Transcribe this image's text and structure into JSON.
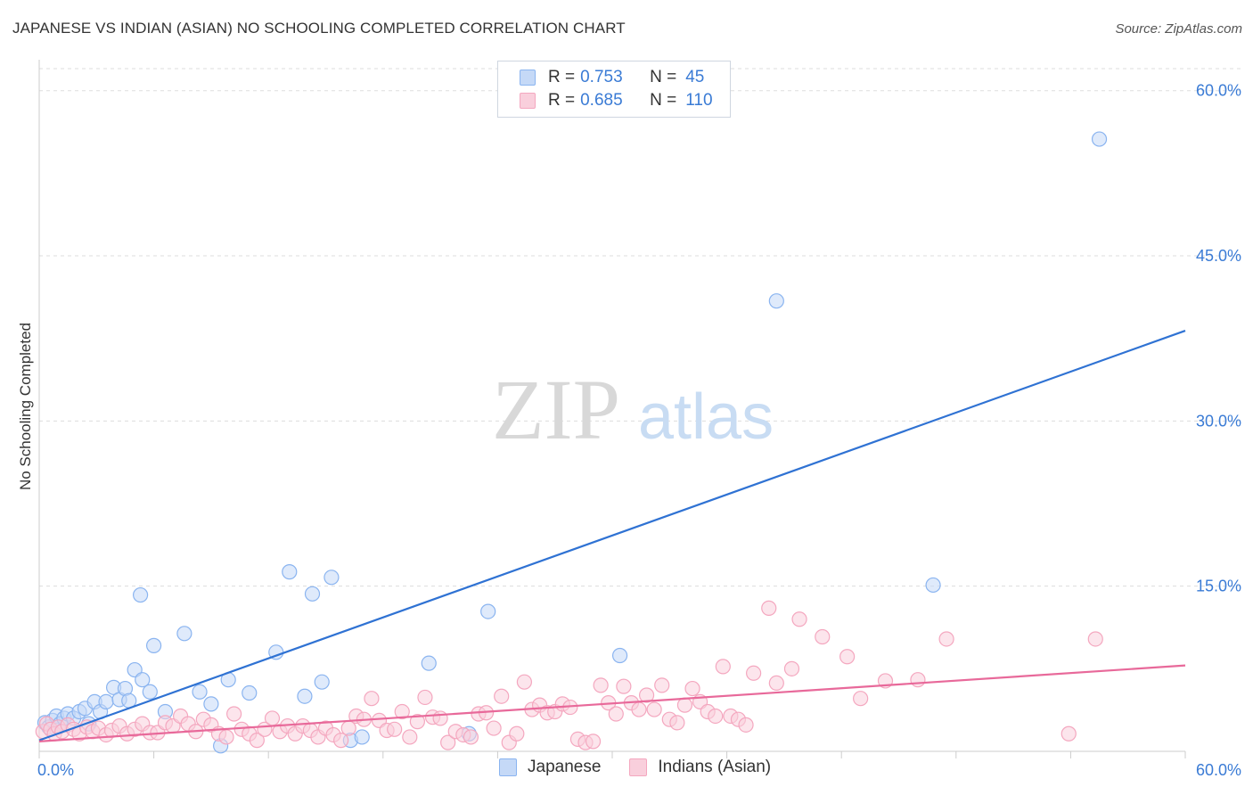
{
  "title": "JAPANESE VS INDIAN (ASIAN) NO SCHOOLING COMPLETED CORRELATION CHART",
  "source": "Source: ZipAtlas.com",
  "watermark": {
    "zip": "ZIP",
    "atlas": "atlas"
  },
  "legend": [
    {
      "r_label": "R =",
      "r_value": "0.753",
      "n_label": "N =",
      "n_value": "45",
      "color": "#8ab4f0",
      "fill": "#c5d9f7"
    },
    {
      "r_label": "R =",
      "r_value": "0.685",
      "n_label": "N =",
      "n_value": "110",
      "color": "#f4a7bf",
      "fill": "#f9cfdc"
    }
  ],
  "bottom_legend": [
    {
      "label": "Japanese",
      "color": "#8ab4f0",
      "fill": "#c5d9f7"
    },
    {
      "label": "Indians (Asian)",
      "color": "#f4a7bf",
      "fill": "#f9cfdc"
    }
  ],
  "chart_data": {
    "type": "scatter",
    "title": "JAPANESE VS INDIAN (ASIAN) NO SCHOOLING COMPLETED CORRELATION CHART",
    "xlabel": "",
    "ylabel": "No Schooling Completed",
    "xlim": [
      0,
      60
    ],
    "ylim": [
      0,
      62
    ],
    "x_tick_labels": [
      {
        "value": 0,
        "label": "0.0%"
      },
      {
        "value": 60,
        "label": "60.0%"
      }
    ],
    "y_tick_labels": [
      {
        "value": 15,
        "label": "15.0%"
      },
      {
        "value": 30,
        "label": "30.0%"
      },
      {
        "value": 45,
        "label": "45.0%"
      },
      {
        "value": 60,
        "label": "60.0%"
      }
    ],
    "grid": true,
    "series": [
      {
        "name": "Japanese",
        "stroke": "#8ab4f0",
        "fill": "#c5d9f7",
        "line_color": "#2f72d3",
        "trend": {
          "x0": 0,
          "y0": 1.0,
          "x1": 60,
          "y1": 38.2
        },
        "points": [
          [
            0.3,
            2.6
          ],
          [
            0.5,
            2.2
          ],
          [
            0.7,
            2.8
          ],
          [
            0.9,
            3.2
          ],
          [
            1.1,
            2.5
          ],
          [
            1.3,
            3.0
          ],
          [
            1.5,
            3.4
          ],
          [
            1.8,
            3.0
          ],
          [
            2.1,
            3.6
          ],
          [
            2.4,
            3.9
          ],
          [
            2.6,
            2.5
          ],
          [
            2.9,
            4.5
          ],
          [
            3.2,
            3.6
          ],
          [
            3.5,
            4.5
          ],
          [
            3.9,
            5.8
          ],
          [
            4.2,
            4.7
          ],
          [
            4.5,
            5.7
          ],
          [
            4.7,
            4.6
          ],
          [
            5.0,
            7.4
          ],
          [
            5.3,
            14.2
          ],
          [
            5.4,
            6.5
          ],
          [
            5.8,
            5.4
          ],
          [
            6.0,
            9.6
          ],
          [
            6.6,
            3.6
          ],
          [
            7.6,
            10.7
          ],
          [
            8.4,
            5.4
          ],
          [
            9.0,
            4.3
          ],
          [
            9.5,
            0.5
          ],
          [
            9.9,
            6.5
          ],
          [
            11.0,
            5.3
          ],
          [
            12.4,
            9.0
          ],
          [
            13.1,
            16.3
          ],
          [
            13.9,
            5.0
          ],
          [
            14.3,
            14.3
          ],
          [
            14.8,
            6.3
          ],
          [
            15.3,
            15.8
          ],
          [
            16.3,
            1.0
          ],
          [
            16.9,
            1.3
          ],
          [
            20.4,
            8.0
          ],
          [
            22.5,
            1.6
          ],
          [
            23.5,
            12.7
          ],
          [
            30.4,
            8.7
          ],
          [
            38.6,
            40.9
          ],
          [
            46.8,
            15.1
          ],
          [
            55.5,
            55.6
          ]
        ]
      },
      {
        "name": "Indians (Asian)",
        "stroke": "#f4a7bf",
        "fill": "#f9cfdc",
        "line_color": "#e8699a",
        "trend": {
          "x0": 0,
          "y0": 0.9,
          "x1": 60,
          "y1": 7.8
        },
        "points": [
          [
            0.2,
            1.8
          ],
          [
            0.4,
            2.5
          ],
          [
            0.6,
            2.0
          ],
          [
            0.8,
            1.6
          ],
          [
            1.0,
            2.2
          ],
          [
            1.2,
            1.8
          ],
          [
            1.5,
            2.4
          ],
          [
            1.8,
            2.0
          ],
          [
            2.1,
            1.6
          ],
          [
            2.5,
            2.2
          ],
          [
            2.8,
            1.8
          ],
          [
            3.1,
            2.1
          ],
          [
            3.5,
            1.5
          ],
          [
            3.8,
            1.9
          ],
          [
            4.2,
            2.3
          ],
          [
            4.6,
            1.6
          ],
          [
            5.0,
            2.0
          ],
          [
            5.4,
            2.5
          ],
          [
            5.8,
            1.7
          ],
          [
            6.2,
            1.7
          ],
          [
            6.6,
            2.6
          ],
          [
            7.0,
            2.3
          ],
          [
            7.4,
            3.2
          ],
          [
            7.8,
            2.5
          ],
          [
            8.2,
            1.8
          ],
          [
            8.6,
            2.9
          ],
          [
            9.0,
            2.4
          ],
          [
            9.4,
            1.6
          ],
          [
            9.8,
            1.3
          ],
          [
            10.2,
            3.4
          ],
          [
            10.6,
            2.0
          ],
          [
            11.0,
            1.6
          ],
          [
            11.4,
            1.0
          ],
          [
            11.8,
            2.0
          ],
          [
            12.2,
            3.0
          ],
          [
            12.6,
            1.8
          ],
          [
            13.0,
            2.3
          ],
          [
            13.4,
            1.6
          ],
          [
            13.8,
            2.3
          ],
          [
            14.2,
            1.9
          ],
          [
            14.6,
            1.3
          ],
          [
            15.0,
            2.1
          ],
          [
            15.4,
            1.5
          ],
          [
            15.8,
            1.0
          ],
          [
            16.2,
            2.1
          ],
          [
            16.6,
            3.2
          ],
          [
            17.0,
            2.9
          ],
          [
            17.4,
            4.8
          ],
          [
            17.8,
            2.8
          ],
          [
            18.2,
            1.9
          ],
          [
            18.6,
            2.0
          ],
          [
            19.0,
            3.6
          ],
          [
            19.4,
            1.3
          ],
          [
            19.8,
            2.7
          ],
          [
            20.2,
            4.9
          ],
          [
            20.6,
            3.1
          ],
          [
            21.0,
            3.0
          ],
          [
            21.4,
            0.8
          ],
          [
            21.8,
            1.8
          ],
          [
            22.2,
            1.5
          ],
          [
            22.6,
            1.3
          ],
          [
            23.0,
            3.4
          ],
          [
            23.4,
            3.5
          ],
          [
            23.8,
            2.1
          ],
          [
            24.2,
            5.0
          ],
          [
            24.6,
            0.8
          ],
          [
            25.0,
            1.6
          ],
          [
            25.4,
            6.3
          ],
          [
            25.8,
            3.8
          ],
          [
            26.2,
            4.2
          ],
          [
            26.6,
            3.5
          ],
          [
            27.0,
            3.6
          ],
          [
            27.4,
            4.3
          ],
          [
            27.8,
            4.0
          ],
          [
            28.2,
            1.1
          ],
          [
            28.6,
            0.8
          ],
          [
            29.0,
            0.9
          ],
          [
            29.4,
            6.0
          ],
          [
            29.8,
            4.4
          ],
          [
            30.2,
            3.4
          ],
          [
            30.6,
            5.9
          ],
          [
            31.0,
            4.4
          ],
          [
            31.4,
            3.8
          ],
          [
            31.8,
            5.1
          ],
          [
            32.2,
            3.8
          ],
          [
            32.6,
            6.0
          ],
          [
            33.0,
            2.9
          ],
          [
            33.4,
            2.6
          ],
          [
            33.8,
            4.2
          ],
          [
            34.2,
            5.7
          ],
          [
            34.6,
            4.5
          ],
          [
            35.0,
            3.6
          ],
          [
            35.4,
            3.2
          ],
          [
            35.8,
            7.7
          ],
          [
            36.2,
            3.2
          ],
          [
            36.6,
            2.9
          ],
          [
            37.0,
            2.4
          ],
          [
            37.4,
            7.1
          ],
          [
            38.2,
            13.0
          ],
          [
            38.6,
            6.2
          ],
          [
            39.4,
            7.5
          ],
          [
            39.8,
            12.0
          ],
          [
            41.0,
            10.4
          ],
          [
            42.3,
            8.6
          ],
          [
            43.0,
            4.8
          ],
          [
            44.3,
            6.4
          ],
          [
            46.0,
            6.5
          ],
          [
            47.5,
            10.2
          ],
          [
            53.9,
            1.6
          ],
          [
            55.3,
            10.2
          ]
        ]
      }
    ]
  }
}
